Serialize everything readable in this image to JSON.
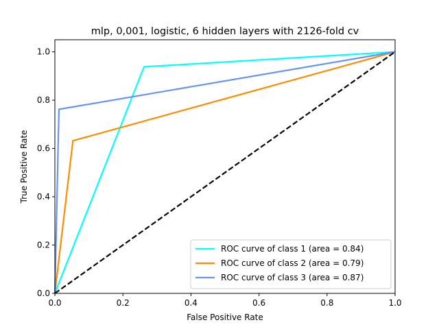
{
  "chart_data": {
    "type": "line",
    "title": "mlp, 0,001, logistic, 6 hidden layers with 2126-fold cv",
    "xlabel": "False Positive Rate",
    "ylabel": "True Positive Rate",
    "xlim": [
      0.0,
      1.0
    ],
    "ylim": [
      0.0,
      1.05
    ],
    "xticks": [
      "0.0",
      "0.2",
      "0.4",
      "0.6",
      "0.8",
      "1.0"
    ],
    "yticks": [
      "0.0",
      "0.2",
      "0.4",
      "0.6",
      "0.8",
      "1.0"
    ],
    "grid": false,
    "legend_position": "lower-right",
    "series": [
      {
        "name": "ROC curve of class 1 (area = 0.84)",
        "color": "#00ffff",
        "x": [
          0.0,
          0.262,
          1.0
        ],
        "y": [
          0.0,
          0.938,
          1.0
        ]
      },
      {
        "name": "ROC curve of class 2 (area = 0.79)",
        "color": "#ff8c00",
        "x": [
          0.0,
          0.053,
          1.0
        ],
        "y": [
          0.0,
          0.632,
          1.0
        ]
      },
      {
        "name": "ROC curve of class 3 (area = 0.87)",
        "color": "#6495ed",
        "x": [
          0.0,
          0.012,
          1.0
        ],
        "y": [
          0.0,
          0.762,
          1.0
        ]
      }
    ],
    "reference_line": {
      "style": "dashed",
      "color": "#000000",
      "x": [
        0.0,
        1.0
      ],
      "y": [
        0.0,
        1.0
      ]
    }
  }
}
